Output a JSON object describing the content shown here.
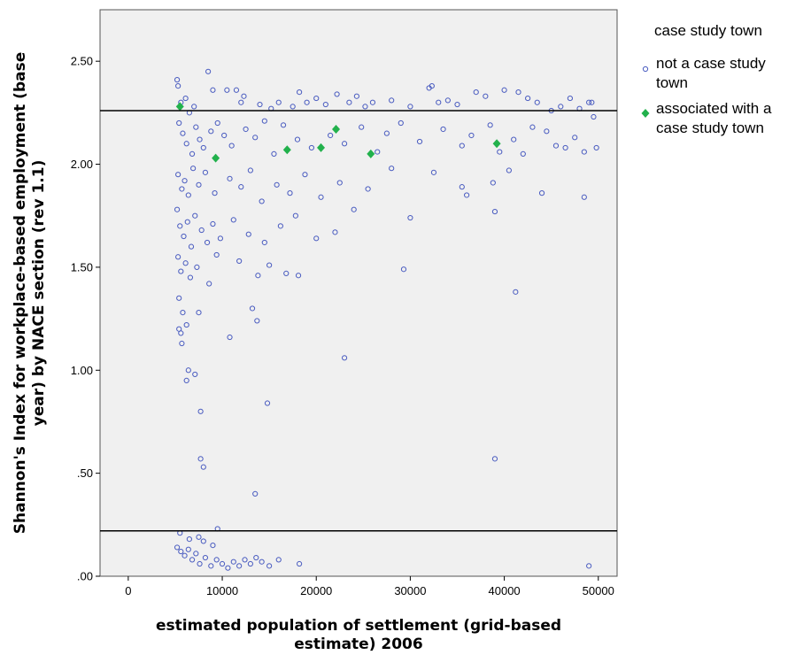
{
  "chart_data": {
    "type": "scatter",
    "xlabel_lines": [
      "estimated population of settlement (grid-based",
      "estimate) 2006"
    ],
    "ylabel_lines": [
      "Shannon's Index for workplace-based employment (base",
      "year) by NACE section (rev 1.1)"
    ],
    "xlim": [
      -3000,
      52000
    ],
    "ylim": [
      0,
      2.75
    ],
    "x_ticks": [
      0,
      10000,
      20000,
      30000,
      40000,
      50000
    ],
    "x_tick_labels": [
      "0",
      "10000",
      "20000",
      "30000",
      "40000",
      "50000"
    ],
    "y_ticks": [
      0,
      0.5,
      1.0,
      1.5,
      2.0,
      2.5
    ],
    "y_tick_labels": [
      ".00",
      ".50",
      "1.00",
      "1.50",
      "2.00",
      "2.50"
    ],
    "reference_lines_y": [
      2.26,
      0.22
    ],
    "plot_background": "#f0f0f0",
    "legend": {
      "title": "case study town",
      "placement": "right",
      "entries": [
        {
          "label_lines": [
            "not a case study",
            "town"
          ],
          "marker": "open-circle",
          "color": "#4a5cc0"
        },
        {
          "label_lines": [
            "associated with a",
            "case study town"
          ],
          "marker": "diamond",
          "color": "#22b14c"
        }
      ]
    },
    "series": [
      {
        "name": "not a case study town",
        "marker": "open-circle",
        "color": "#4a5cc0",
        "points": [
          [
            5200,
            2.41
          ],
          [
            5300,
            2.38
          ],
          [
            5600,
            2.3
          ],
          [
            6100,
            2.32
          ],
          [
            6500,
            2.25
          ],
          [
            7000,
            2.28
          ],
          [
            8500,
            2.45
          ],
          [
            9000,
            2.36
          ],
          [
            10500,
            2.36
          ],
          [
            11500,
            2.36
          ],
          [
            12000,
            2.3
          ],
          [
            12300,
            2.33
          ],
          [
            14000,
            2.29
          ],
          [
            15200,
            2.27
          ],
          [
            16000,
            2.3
          ],
          [
            17500,
            2.28
          ],
          [
            18200,
            2.35
          ],
          [
            19000,
            2.3
          ],
          [
            20000,
            2.32
          ],
          [
            21000,
            2.29
          ],
          [
            22200,
            2.34
          ],
          [
            23500,
            2.3
          ],
          [
            24300,
            2.33
          ],
          [
            25200,
            2.28
          ],
          [
            26000,
            2.3
          ],
          [
            28000,
            2.31
          ],
          [
            30000,
            2.28
          ],
          [
            32000,
            2.37
          ],
          [
            32300,
            2.38
          ],
          [
            33000,
            2.3
          ],
          [
            34000,
            2.31
          ],
          [
            35000,
            2.29
          ],
          [
            37000,
            2.35
          ],
          [
            38000,
            2.33
          ],
          [
            40000,
            2.36
          ],
          [
            41500,
            2.35
          ],
          [
            42500,
            2.32
          ],
          [
            43500,
            2.3
          ],
          [
            45000,
            2.26
          ],
          [
            46000,
            2.28
          ],
          [
            47000,
            2.32
          ],
          [
            48000,
            2.27
          ],
          [
            49000,
            2.3
          ],
          [
            49300,
            2.3
          ],
          [
            49500,
            2.23
          ],
          [
            5400,
            2.2
          ],
          [
            5800,
            2.15
          ],
          [
            6200,
            2.1
          ],
          [
            6800,
            2.05
          ],
          [
            7200,
            2.18
          ],
          [
            7600,
            2.12
          ],
          [
            8000,
            2.08
          ],
          [
            8800,
            2.16
          ],
          [
            9500,
            2.2
          ],
          [
            10200,
            2.14
          ],
          [
            11000,
            2.09
          ],
          [
            12500,
            2.17
          ],
          [
            13500,
            2.13
          ],
          [
            14500,
            2.21
          ],
          [
            15500,
            2.05
          ],
          [
            16500,
            2.19
          ],
          [
            18000,
            2.12
          ],
          [
            19500,
            2.08
          ],
          [
            21500,
            2.14
          ],
          [
            23000,
            2.1
          ],
          [
            24800,
            2.18
          ],
          [
            26500,
            2.06
          ],
          [
            27500,
            2.15
          ],
          [
            29000,
            2.2
          ],
          [
            31000,
            2.11
          ],
          [
            33500,
            2.17
          ],
          [
            35500,
            2.09
          ],
          [
            36500,
            2.14
          ],
          [
            38500,
            2.19
          ],
          [
            39500,
            2.06
          ],
          [
            41000,
            2.12
          ],
          [
            42000,
            2.05
          ],
          [
            43000,
            2.18
          ],
          [
            44500,
            2.16
          ],
          [
            45500,
            2.09
          ],
          [
            46500,
            2.08
          ],
          [
            47500,
            2.13
          ],
          [
            48500,
            2.06
          ],
          [
            49800,
            2.08
          ],
          [
            5300,
            1.95
          ],
          [
            5700,
            1.88
          ],
          [
            6000,
            1.92
          ],
          [
            6400,
            1.85
          ],
          [
            6900,
            1.98
          ],
          [
            7500,
            1.9
          ],
          [
            8200,
            1.96
          ],
          [
            9200,
            1.86
          ],
          [
            10800,
            1.93
          ],
          [
            12000,
            1.89
          ],
          [
            13000,
            1.97
          ],
          [
            14200,
            1.82
          ],
          [
            15800,
            1.9
          ],
          [
            17200,
            1.86
          ],
          [
            18800,
            1.95
          ],
          [
            20500,
            1.84
          ],
          [
            22500,
            1.91
          ],
          [
            24000,
            1.78
          ],
          [
            25500,
            1.88
          ],
          [
            28000,
            1.98
          ],
          [
            30000,
            1.74
          ],
          [
            32500,
            1.96
          ],
          [
            35500,
            1.89
          ],
          [
            36000,
            1.85
          ],
          [
            38800,
            1.91
          ],
          [
            40500,
            1.97
          ],
          [
            44000,
            1.86
          ],
          [
            48500,
            1.84
          ],
          [
            39000,
            1.77
          ],
          [
            5200,
            1.78
          ],
          [
            5500,
            1.7
          ],
          [
            5900,
            1.65
          ],
          [
            6300,
            1.72
          ],
          [
            6700,
            1.6
          ],
          [
            7100,
            1.75
          ],
          [
            7800,
            1.68
          ],
          [
            8400,
            1.62
          ],
          [
            9000,
            1.71
          ],
          [
            9800,
            1.64
          ],
          [
            11200,
            1.73
          ],
          [
            12800,
            1.66
          ],
          [
            14500,
            1.62
          ],
          [
            16200,
            1.7
          ],
          [
            17800,
            1.75
          ],
          [
            20000,
            1.64
          ],
          [
            22000,
            1.67
          ],
          [
            5300,
            1.55
          ],
          [
            5600,
            1.48
          ],
          [
            6100,
            1.52
          ],
          [
            6600,
            1.45
          ],
          [
            7300,
            1.5
          ],
          [
            8600,
            1.42
          ],
          [
            9400,
            1.56
          ],
          [
            11800,
            1.53
          ],
          [
            13800,
            1.46
          ],
          [
            15000,
            1.51
          ],
          [
            16800,
            1.47
          ],
          [
            18100,
            1.46
          ],
          [
            29300,
            1.49
          ],
          [
            5400,
            1.35
          ],
          [
            5800,
            1.28
          ],
          [
            6200,
            1.22
          ],
          [
            5400,
            1.2
          ],
          [
            5600,
            1.18
          ],
          [
            7500,
            1.28
          ],
          [
            10800,
            1.16
          ],
          [
            13200,
            1.3
          ],
          [
            13700,
            1.24
          ],
          [
            41200,
            1.38
          ],
          [
            5700,
            1.13
          ],
          [
            6400,
            1.0
          ],
          [
            6200,
            0.95
          ],
          [
            7100,
            0.98
          ],
          [
            7700,
            0.8
          ],
          [
            23000,
            1.06
          ],
          [
            14800,
            0.84
          ],
          [
            7700,
            0.57
          ],
          [
            8000,
            0.53
          ],
          [
            13500,
            0.4
          ],
          [
            39000,
            0.57
          ],
          [
            9500,
            0.23
          ],
          [
            5500,
            0.21
          ],
          [
            6500,
            0.18
          ],
          [
            7500,
            0.19
          ],
          [
            8000,
            0.17
          ],
          [
            9000,
            0.15
          ],
          [
            5200,
            0.14
          ],
          [
            5600,
            0.12
          ],
          [
            6000,
            0.1
          ],
          [
            6400,
            0.13
          ],
          [
            6800,
            0.08
          ],
          [
            7200,
            0.11
          ],
          [
            7600,
            0.06
          ],
          [
            8200,
            0.09
          ],
          [
            8800,
            0.05
          ],
          [
            9400,
            0.08
          ],
          [
            10000,
            0.06
          ],
          [
            10600,
            0.04
          ],
          [
            11200,
            0.07
          ],
          [
            11800,
            0.05
          ],
          [
            12400,
            0.08
          ],
          [
            13000,
            0.06
          ],
          [
            13600,
            0.09
          ],
          [
            14200,
            0.07
          ],
          [
            15000,
            0.05
          ],
          [
            16000,
            0.08
          ],
          [
            18200,
            0.06
          ],
          [
            49000,
            0.05
          ]
        ]
      },
      {
        "name": "associated with a case study town",
        "marker": "diamond",
        "color": "#22b14c",
        "points": [
          [
            5500,
            2.28
          ],
          [
            9300,
            2.03
          ],
          [
            16900,
            2.07
          ],
          [
            20500,
            2.08
          ],
          [
            22100,
            2.17
          ],
          [
            25800,
            2.05
          ],
          [
            39200,
            2.1
          ]
        ]
      }
    ]
  }
}
